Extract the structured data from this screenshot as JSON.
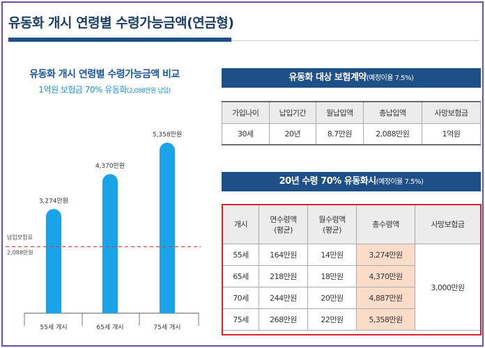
{
  "page": {
    "title": "유동화 개시 연령별 수령가능금액(연금형)"
  },
  "chart_data": {
    "type": "bar",
    "title": "유동화 개시 연령별 수령가능금액 비교",
    "subtitle_main": "1억원 보험금 70% 유동화",
    "subtitle_small": "(2,088만원 납입)",
    "categories": [
      "55세 개시",
      "65세 개시",
      "75세 개시"
    ],
    "values": [
      3274,
      4370,
      5358
    ],
    "data_labels": [
      "3,274만원",
      "4,370만원",
      "5,358만원"
    ],
    "reference_line": {
      "value": 2088,
      "label_line1": "납입보험료",
      "label_line2": "2,088만원"
    },
    "ylim": [
      0,
      6000
    ],
    "colors": {
      "bar": "#1ba3e8",
      "reference": "#d9363e"
    }
  },
  "contract": {
    "header": "유동화 대상 보험계약",
    "header_note": "(예정이율 7.5%)",
    "columns": [
      "가입나이",
      "납입기간",
      "월납입액",
      "총납입액",
      "사망보험금"
    ],
    "row": [
      "30세",
      "20년",
      "8.7만원",
      "2,088만원",
      "1억원"
    ]
  },
  "conversion": {
    "header": "20년 수령 70% 유동화시",
    "header_note": "(예정이율 7.5%)",
    "columns": [
      {
        "line1": "개시",
        "line2": ""
      },
      {
        "line1": "연수령액",
        "line2": "(평균)"
      },
      {
        "line1": "월수령액",
        "line2": "(평균)"
      },
      {
        "line1": "총수령액",
        "line2": ""
      },
      {
        "line1": "사망보험금",
        "line2": ""
      }
    ],
    "rows": [
      {
        "age": "55세",
        "annual": "164만원",
        "monthly": "14만원",
        "total": "3,274만원"
      },
      {
        "age": "65세",
        "annual": "218만원",
        "monthly": "18만원",
        "total": "4,370만원"
      },
      {
        "age": "70세",
        "annual": "244만원",
        "monthly": "20만원",
        "total": "4,887만원"
      },
      {
        "age": "75세",
        "annual": "268만원",
        "monthly": "22만원",
        "total": "5,358만원"
      }
    ],
    "death_benefit": "3,000만원"
  }
}
